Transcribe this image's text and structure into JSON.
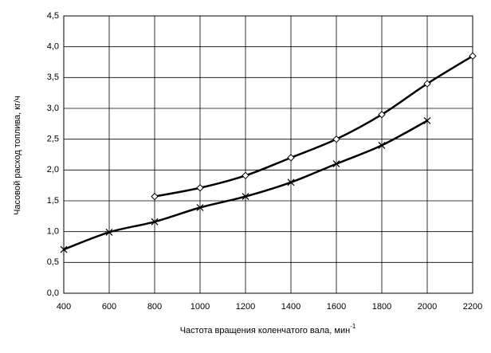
{
  "chart_data": {
    "type": "line",
    "ylabel": "Часовой расход топлива, кг/ч",
    "xlabel": "Частота вращения коленчатого вала, мин",
    "xlabel_superscript": "-1",
    "xlim": [
      400,
      2200
    ],
    "xticks": [
      400,
      600,
      800,
      1000,
      1200,
      1400,
      1600,
      1800,
      2000,
      2200
    ],
    "ylim": [
      0,
      4.5
    ],
    "yticks": [
      {
        "value": 0,
        "label": "0,0"
      },
      {
        "value": 0.5,
        "label": "0,5"
      },
      {
        "value": 1,
        "label": "1,0"
      },
      {
        "value": 1.5,
        "label": "1,5"
      },
      {
        "value": 2,
        "label": "2,0"
      },
      {
        "value": 2.5,
        "label": "2,5"
      },
      {
        "value": 3,
        "label": "3,0"
      },
      {
        "value": 3.5,
        "label": "3,5"
      },
      {
        "value": 4,
        "label": "4,0"
      },
      {
        "value": 4.5,
        "label": "4,5"
      }
    ],
    "grid": true,
    "series": [
      {
        "color": "#000000",
        "marker": "diamond",
        "x": [
          800,
          1000,
          1200,
          1400,
          1600,
          1800,
          2000,
          2200
        ],
        "values": [
          1.57,
          1.71,
          1.91,
          2.2,
          2.5,
          2.9,
          3.4,
          3.85
        ]
      },
      {
        "color": "#000000",
        "marker": "cross",
        "x": [
          400,
          600,
          800,
          1000,
          1200,
          1400,
          1600,
          1800,
          2000
        ],
        "values": [
          0.71,
          0.99,
          1.16,
          1.39,
          1.57,
          1.8,
          2.1,
          2.4,
          2.8
        ]
      }
    ]
  }
}
